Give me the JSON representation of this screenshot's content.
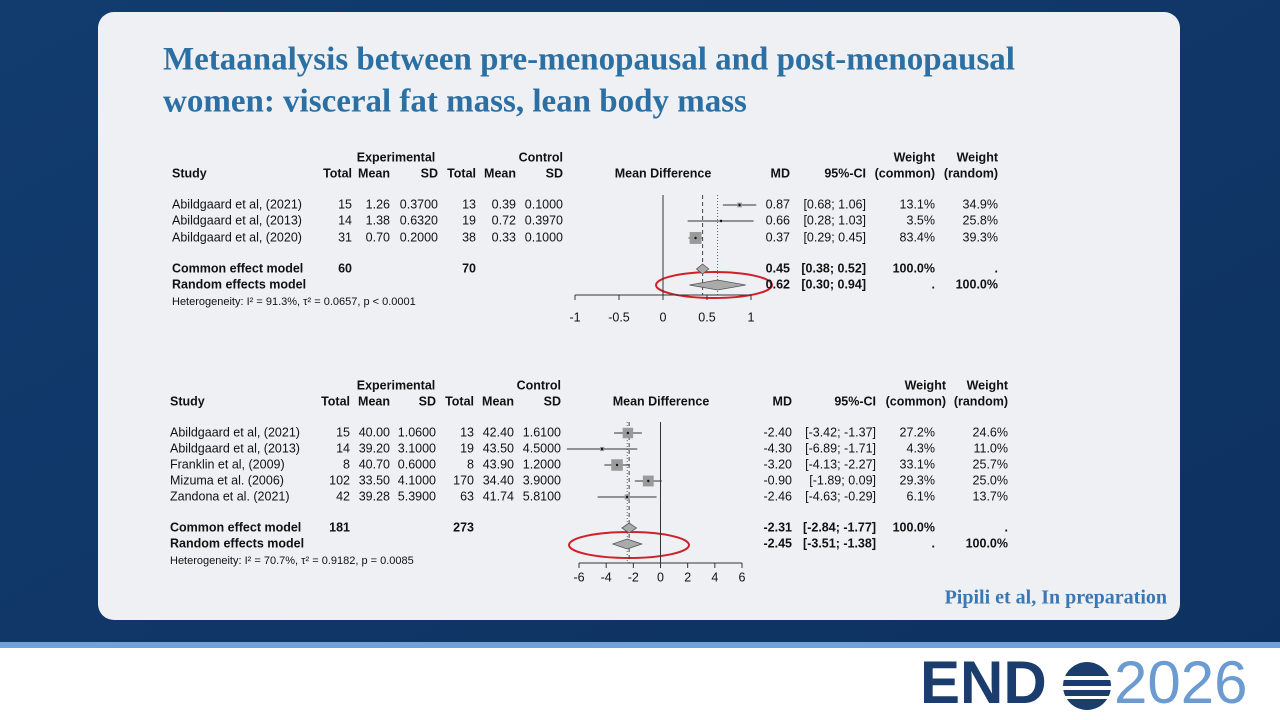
{
  "title": [
    "Metaanalysis between pre-menopausal and post-menopausal",
    "women: visceral fat mass, lean body mass"
  ],
  "plots": [
    {
      "header_top": [
        "Experimental",
        "Control",
        "Weight",
        "Weight"
      ],
      "header": [
        "Study",
        "Total",
        "Mean",
        "SD",
        "Total",
        "Mean",
        "SD",
        "Mean Difference",
        "MD",
        "95%-CI",
        "(common)",
        "(random)"
      ],
      "rows": [
        {
          "study": "Abildgaard et al, (2021)",
          "exp_total": "15",
          "exp_mean": "1.26",
          "exp_sd": "0.3700",
          "ctl_total": "13",
          "ctl_mean": "0.39",
          "ctl_sd": "0.1000",
          "md": {
            "value": 0.87,
            "label": "0.87"
          },
          "ci": {
            "low": 0.68,
            "high": 1.06,
            "label": "[0.68; 1.06]"
          },
          "weight_common": {
            "value": 13.1,
            "label": "13.1%"
          },
          "weight_random": "34.9%"
        },
        {
          "study": "Abildgaard et al, (2013)",
          "exp_total": "14",
          "exp_mean": "1.38",
          "exp_sd": "0.6320",
          "ctl_total": "19",
          "ctl_mean": "0.72",
          "ctl_sd": "0.3970",
          "md": {
            "value": 0.66,
            "label": "0.66"
          },
          "ci": {
            "low": 0.28,
            "high": 1.03,
            "label": "[0.28; 1.03]"
          },
          "weight_common": {
            "value": 3.5,
            "label": "3.5%"
          },
          "weight_random": "25.8%"
        },
        {
          "study": "Abildgaard et al, (2020)",
          "exp_total": "31",
          "exp_mean": "0.70",
          "exp_sd": "0.2000",
          "ctl_total": "38",
          "ctl_mean": "0.33",
          "ctl_sd": "0.1000",
          "md": {
            "value": 0.37,
            "label": "0.37"
          },
          "ci": {
            "low": 0.29,
            "high": 0.45,
            "label": "[0.29; 0.45]"
          },
          "weight_common": {
            "value": 83.4,
            "label": "83.4%"
          },
          "weight_random": "39.3%"
        }
      ],
      "common": {
        "study": "Common effect model",
        "exp_total": "60",
        "ctl_total": "70",
        "md": {
          "value": 0.45,
          "label": "0.45"
        },
        "ci": {
          "low": 0.38,
          "high": 0.52,
          "label": "[0.38; 0.52]"
        },
        "weight_common": "100.0%",
        "weight_random": "."
      },
      "random": {
        "study": "Random effects model",
        "md": {
          "value": 0.62,
          "label": "0.62"
        },
        "ci": {
          "low": 0.3,
          "high": 0.94,
          "label": "[0.30; 0.94]"
        },
        "weight_common": ".",
        "weight_random": "100.0%"
      },
      "heterogeneity": "Heterogeneity: I² = 91.3%, τ² = 0.0657, p < 0.0001",
      "xlim": [
        -1,
        1
      ],
      "xticks": [
        -1,
        -0.5,
        0,
        0.5,
        1
      ]
    },
    {
      "header_top": [
        "Experimental",
        "Control",
        "Weight",
        "Weight"
      ],
      "header": [
        "Study",
        "Total",
        "Mean",
        "SD",
        "Total",
        "Mean",
        "SD",
        "Mean Difference",
        "MD",
        "95%-CI",
        "(common)",
        "(random)"
      ],
      "rows": [
        {
          "study": "Abildgaard et al, (2021)",
          "exp_total": "15",
          "exp_mean": "40.00",
          "exp_sd": "1.0600",
          "ctl_total": "13",
          "ctl_mean": "42.40",
          "ctl_sd": "1.6100",
          "md": {
            "value": -2.4,
            "label": "-2.40"
          },
          "ci": {
            "low": -3.42,
            "high": -1.37,
            "label": "[-3.42; -1.37]"
          },
          "weight_common": {
            "value": 27.2,
            "label": "27.2%"
          },
          "weight_random": "24.6%"
        },
        {
          "study": "Abildgaard et al, (2013)",
          "exp_total": "14",
          "exp_mean": "39.20",
          "exp_sd": "3.1000",
          "ctl_total": "19",
          "ctl_mean": "43.50",
          "ctl_sd": "4.5000",
          "md": {
            "value": -4.3,
            "label": "-4.30"
          },
          "ci": {
            "low": -6.89,
            "high": -1.71,
            "label": "[-6.89; -1.71]"
          },
          "weight_common": {
            "value": 4.3,
            "label": "4.3%"
          },
          "weight_random": "11.0%"
        },
        {
          "study": "Franklin et al, (2009)",
          "exp_total": "8",
          "exp_mean": "40.70",
          "exp_sd": "0.6000",
          "ctl_total": "8",
          "ctl_mean": "43.90",
          "ctl_sd": "1.2000",
          "md": {
            "value": -3.2,
            "label": "-3.20"
          },
          "ci": {
            "low": -4.13,
            "high": -2.27,
            "label": "[-4.13; -2.27]"
          },
          "weight_common": {
            "value": 33.1,
            "label": "33.1%"
          },
          "weight_random": "25.7%"
        },
        {
          "study": "Mizuma et al. (2006)",
          "exp_total": "102",
          "exp_mean": "33.50",
          "exp_sd": "4.1000",
          "ctl_total": "170",
          "ctl_mean": "34.40",
          "ctl_sd": "3.9000",
          "md": {
            "value": -0.9,
            "label": "-0.90"
          },
          "ci": {
            "low": -1.89,
            "high": 0.09,
            "label": "[-1.89;  0.09]"
          },
          "weight_common": {
            "value": 29.3,
            "label": "29.3%"
          },
          "weight_random": "25.0%"
        },
        {
          "study": "Zandona et al. (2021)",
          "exp_total": "42",
          "exp_mean": "39.28",
          "exp_sd": "5.3900",
          "ctl_total": "63",
          "ctl_mean": "41.74",
          "ctl_sd": "5.8100",
          "md": {
            "value": -2.46,
            "label": "-2.46"
          },
          "ci": {
            "low": -4.63,
            "high": -0.29,
            "label": "[-4.63; -0.29]"
          },
          "weight_common": {
            "value": 6.1,
            "label": "6.1%"
          },
          "weight_random": "13.7%"
        }
      ],
      "common": {
        "study": "Common effect model",
        "exp_total": "181",
        "ctl_total": "273",
        "md": {
          "value": -2.31,
          "label": "-2.31"
        },
        "ci": {
          "low": -2.84,
          "high": -1.77,
          "label": "[-2.84; -1.77]"
        },
        "weight_common": "100.0%",
        "weight_random": "."
      },
      "random": {
        "study": "Random effects model",
        "md": {
          "value": -2.45,
          "label": "-2.45"
        },
        "ci": {
          "low": -3.51,
          "high": -1.38,
          "label": "[-3.51; -1.38]"
        },
        "weight_common": ".",
        "weight_random": "100.0%"
      },
      "heterogeneity": "Heterogeneity: I² = 70.7%, τ² = 0.9182, p = 0.0085",
      "xlim": [
        -6,
        6
      ],
      "xticks": [
        -6,
        -4,
        -2,
        0,
        2,
        4,
        6
      ]
    }
  ],
  "citation": "Pipili et al, In preparation",
  "logo": {
    "left": "END",
    "right": "2026"
  }
}
